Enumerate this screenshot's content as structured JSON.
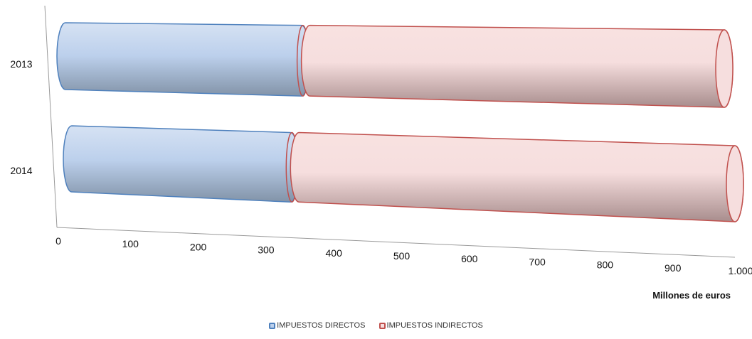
{
  "chart_data": {
    "type": "bar",
    "orientation": "horizontal-stacked-cylinder",
    "categories": [
      "2013",
      "2014"
    ],
    "series": [
      {
        "name": "IMPUESTOS DIRECTOS",
        "values": [
          370,
          345
        ],
        "color": "#4f81bd"
      },
      {
        "name": "IMPUESTOS INDIRECTOS",
        "values": [
          640,
          675
        ],
        "color": "#c0504d"
      }
    ],
    "xlim": [
      0,
      1000
    ],
    "x_ticks": [
      "0",
      "100",
      "200",
      "300",
      "400",
      "500",
      "600",
      "700",
      "800",
      "900",
      "1.000"
    ],
    "xlabel": "Millones de euros",
    "ylabel": "",
    "legend_position": "bottom",
    "grid": false
  }
}
